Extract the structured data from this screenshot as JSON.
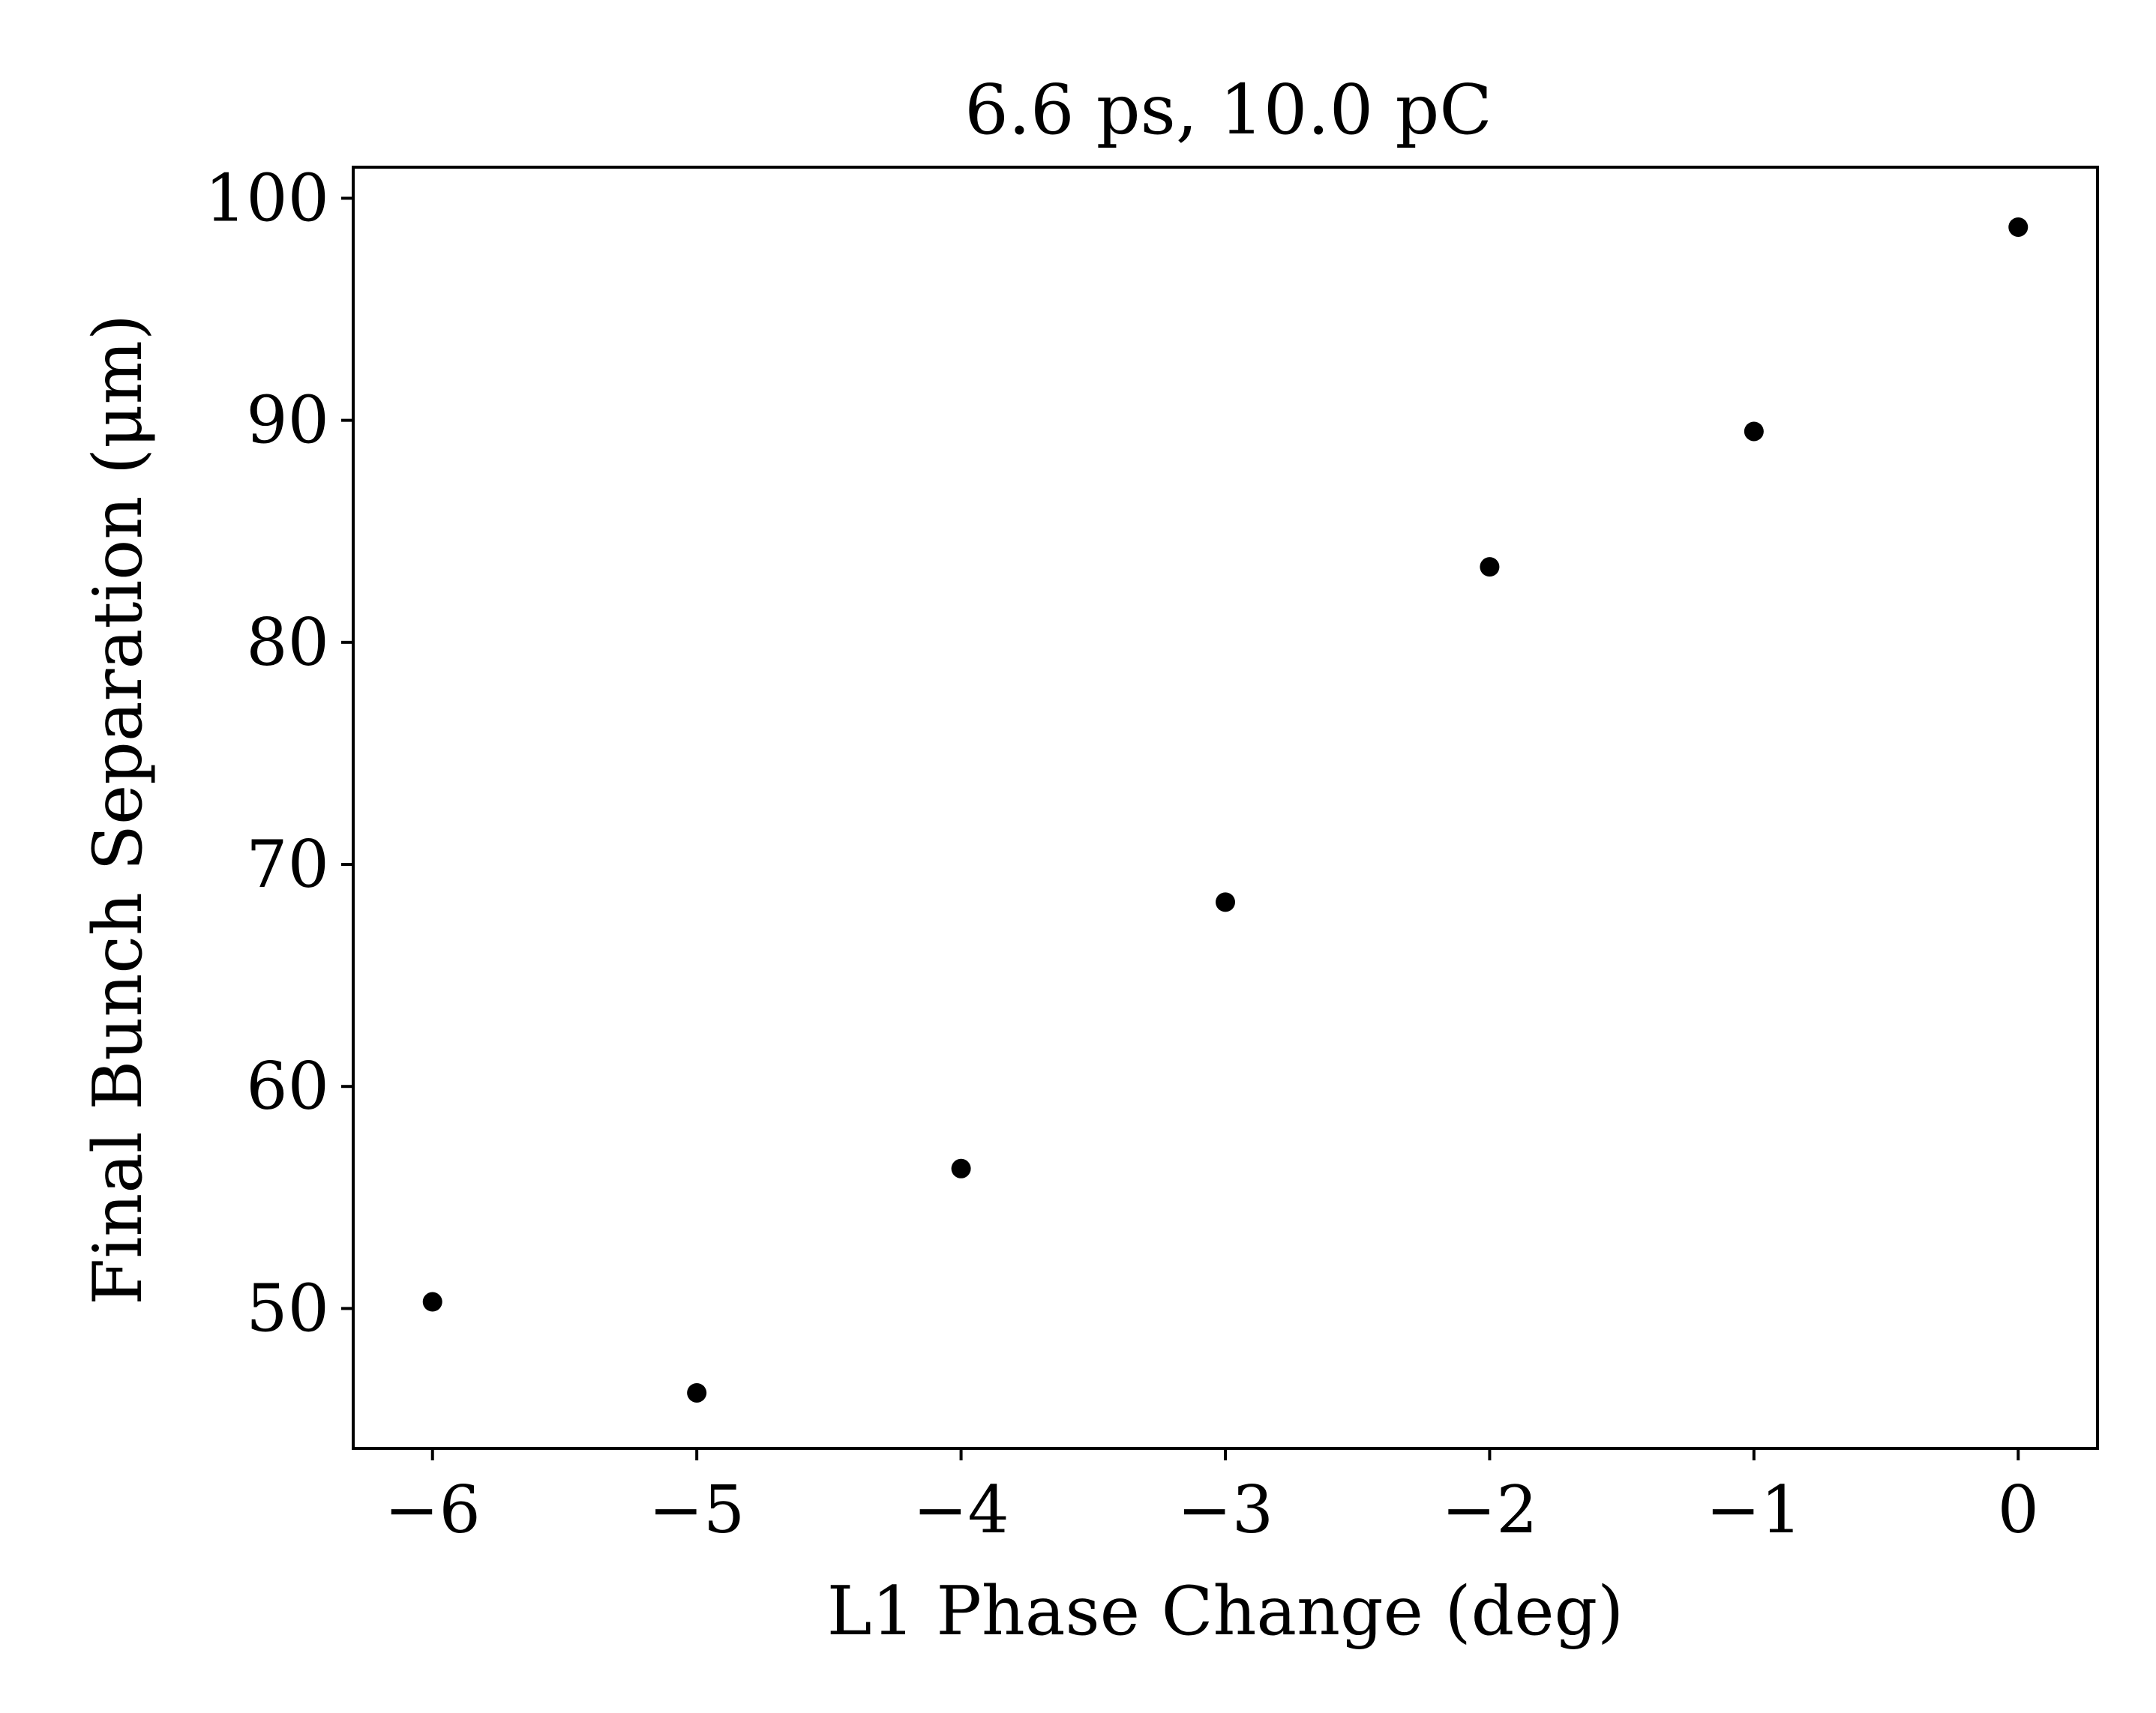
{
  "chart_data": {
    "type": "scatter",
    "title": "6.6 ps, 10.0 pC",
    "xlabel": "L1 Phase Change (deg)",
    "ylabel": "Final Bunch Separation (μm)",
    "x": [
      -6,
      -5,
      -4,
      -3,
      -2,
      -1,
      0
    ],
    "y": [
      50.3,
      46.2,
      56.3,
      68.3,
      83.4,
      89.5,
      98.7
    ],
    "xlim": [
      -6.3,
      0.3
    ],
    "ylim": [
      43.7,
      101.4
    ],
    "xticks": [
      -6,
      -5,
      -4,
      -3,
      -2,
      -1,
      0
    ],
    "xtick_labels": [
      "−6",
      "−5",
      "−4",
      "−3",
      "−2",
      "−1",
      "0"
    ],
    "yticks": [
      50,
      60,
      70,
      80,
      90,
      100
    ],
    "ytick_labels": [
      "50",
      "60",
      "70",
      "80",
      "90",
      "100"
    ],
    "marker_color": "#000000",
    "grid": false,
    "legend": "none"
  }
}
